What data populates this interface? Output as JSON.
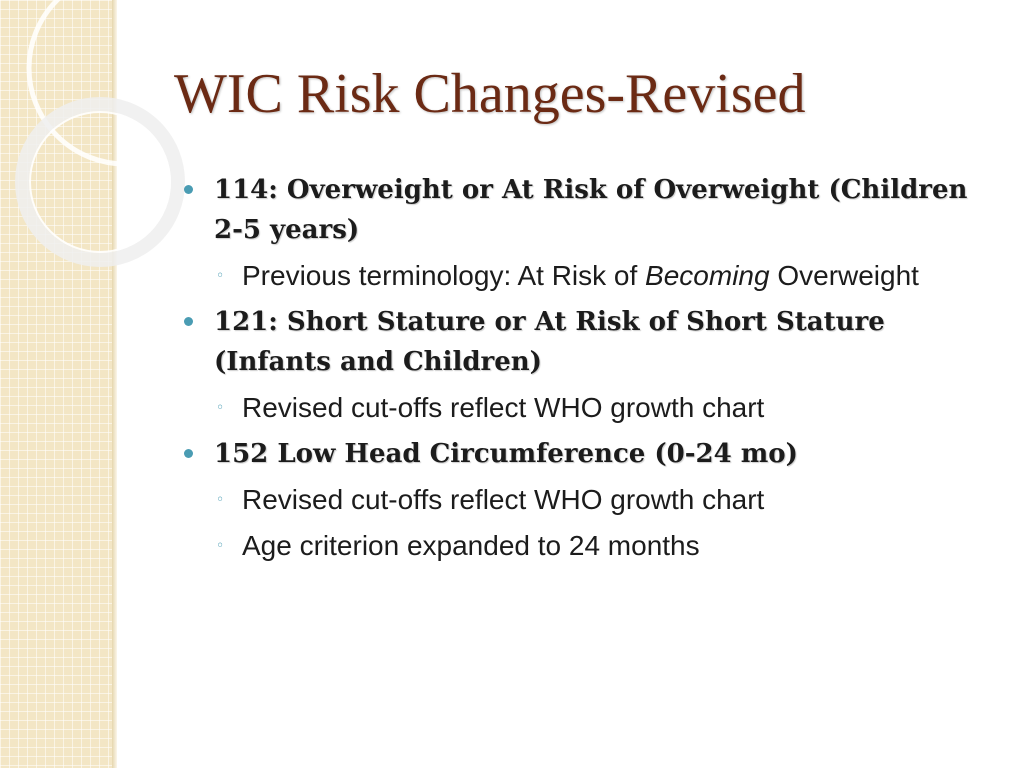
{
  "slide": {
    "title": "WIC Risk Changes-Revised",
    "colors": {
      "title": "#6b2a14",
      "bullet": "#4a9cb3",
      "panel": "#f3e6c5",
      "text": "#1c1c1c"
    },
    "items": [
      {
        "text": "114:  Overweight or At Risk of Overweight (Children 2-5 years)",
        "subitems": [
          {
            "text_before": "Previous terminology:  At Risk of ",
            "text_italic": "Becoming",
            "text_after": " Overweight"
          }
        ]
      },
      {
        "text": "121: Short Stature or At Risk of Short Stature (Infants and Children)",
        "subitems": [
          {
            "text": "Revised cut-offs reflect WHO growth chart"
          }
        ]
      },
      {
        "text": "152 Low Head Circumference (0-24 mo)",
        "subitems": [
          {
            "text": "Revised cut-offs reflect WHO growth chart"
          },
          {
            "text": "Age criterion expanded to 24 months"
          }
        ]
      }
    ]
  }
}
